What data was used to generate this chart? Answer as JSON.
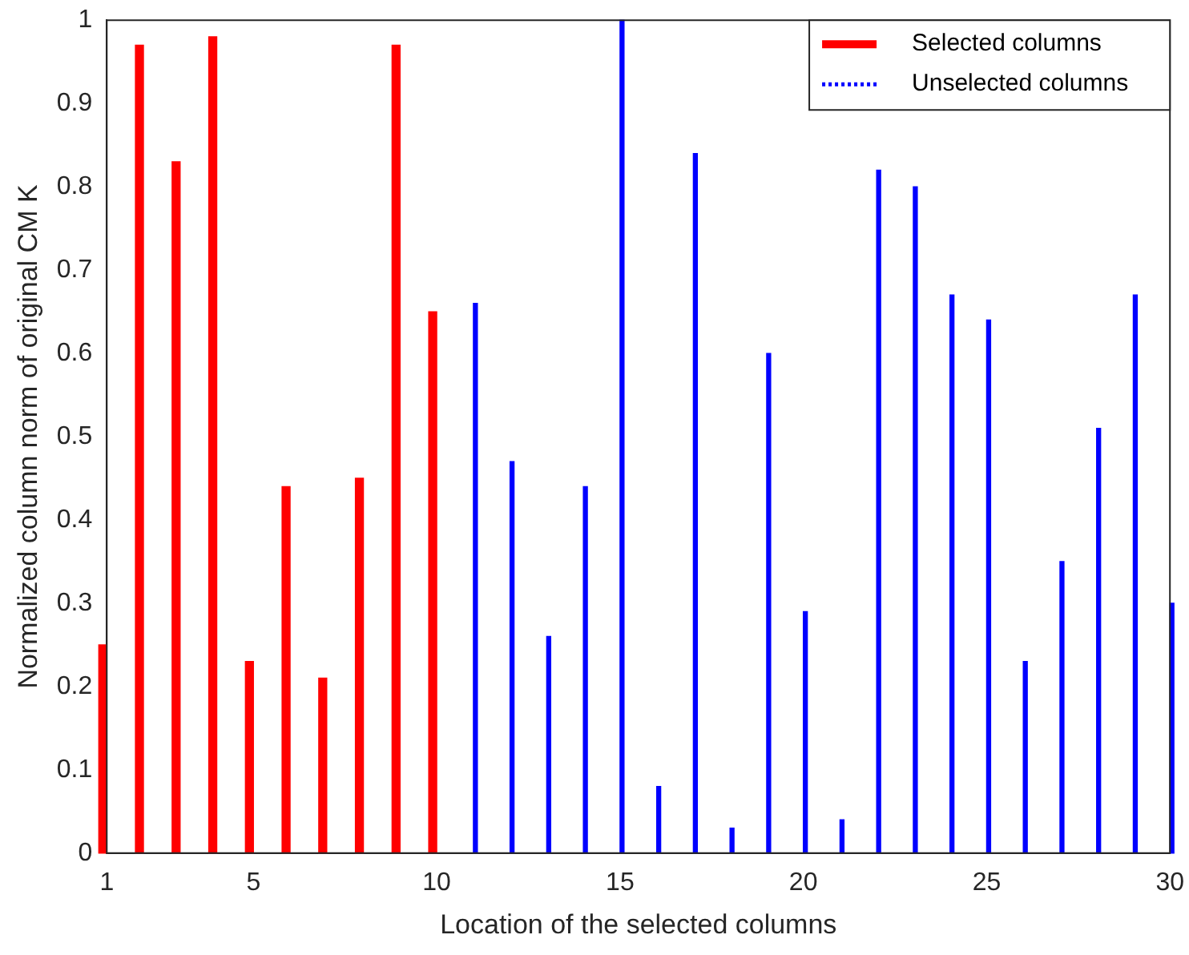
{
  "chart_data": {
    "type": "bar",
    "xlabel": "Location of the selected columns",
    "ylabel": "Normalized column norm of original CM K",
    "xlim": [
      1,
      30
    ],
    "xticks": [
      1,
      5,
      10,
      15,
      20,
      25,
      30
    ],
    "ylim": [
      0,
      1
    ],
    "yticks": [
      0,
      0.1,
      0.2,
      0.3,
      0.4,
      0.5,
      0.6,
      0.7,
      0.8,
      0.9,
      1
    ],
    "legend": "top right",
    "grid": false,
    "series": [
      {
        "name": "Selected columns",
        "color": "#ff0000",
        "line_style": "solid",
        "x": [
          1,
          2,
          3,
          4,
          5,
          6,
          7,
          8,
          9,
          10
        ],
        "values": [
          0.25,
          0.97,
          0.83,
          0.98,
          0.23,
          0.44,
          0.21,
          0.45,
          0.97,
          0.65
        ]
      },
      {
        "name": "Unselected columns",
        "color": "#0000ff",
        "line_style": "dotted",
        "x": [
          11,
          12,
          13,
          14,
          15,
          16,
          17,
          18,
          19,
          20,
          21,
          22,
          23,
          24,
          25,
          26,
          27,
          28,
          29,
          30
        ],
        "values": [
          0.66,
          0.47,
          0.26,
          0.44,
          1.0,
          0.08,
          0.84,
          0.03,
          0.6,
          0.29,
          0.04,
          0.82,
          0.8,
          0.67,
          0.64,
          0.23,
          0.35,
          0.51,
          0.67,
          0.3
        ]
      }
    ]
  }
}
